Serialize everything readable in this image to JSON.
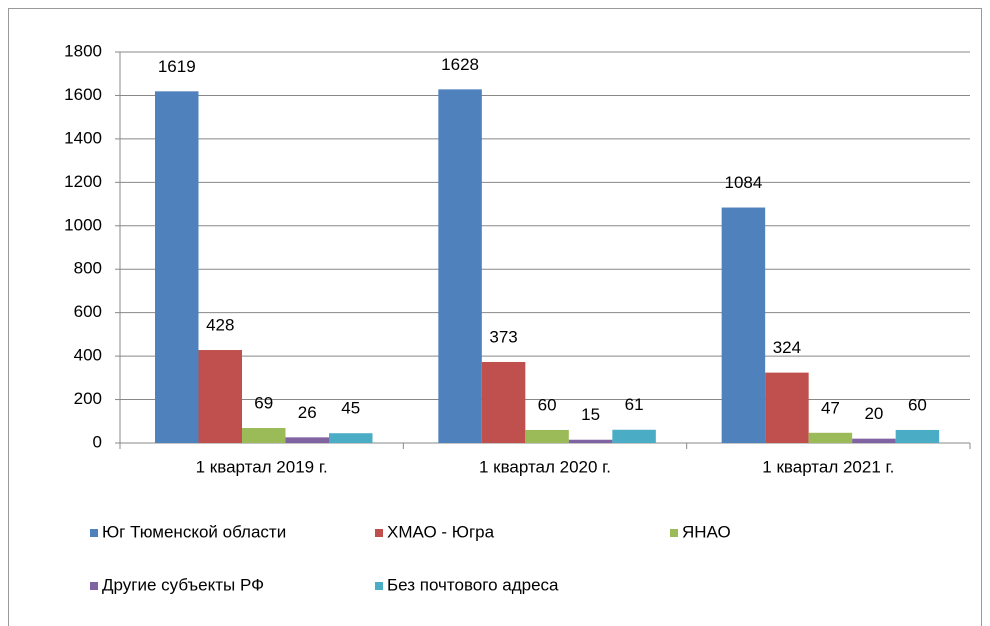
{
  "chart_data": {
    "type": "bar",
    "categories": [
      "1 квартал 2019 г.",
      "1 квартал 2020 г.",
      "1 квартал 2021 г."
    ],
    "series": [
      {
        "name": "Юг Тюменской области",
        "color": "#4f81bd",
        "values": [
          1619,
          1628,
          1084
        ]
      },
      {
        "name": "ХМАО  - Югра",
        "color": "#c0504d",
        "values": [
          428,
          373,
          324
        ]
      },
      {
        "name": "ЯНАО",
        "color": "#9bbb59",
        "values": [
          69,
          60,
          47
        ]
      },
      {
        "name": "Другие субъекты РФ",
        "color": "#8064a2",
        "values": [
          26,
          15,
          20
        ]
      },
      {
        "name": "Без почтового адреса",
        "color": "#4bacc6",
        "values": [
          45,
          61,
          60
        ]
      }
    ],
    "ylim": [
      0,
      1800
    ],
    "yticks": [
      0,
      200,
      400,
      600,
      800,
      1000,
      1200,
      1400,
      1600,
      1800
    ],
    "grid": true,
    "legend": "bottom"
  }
}
